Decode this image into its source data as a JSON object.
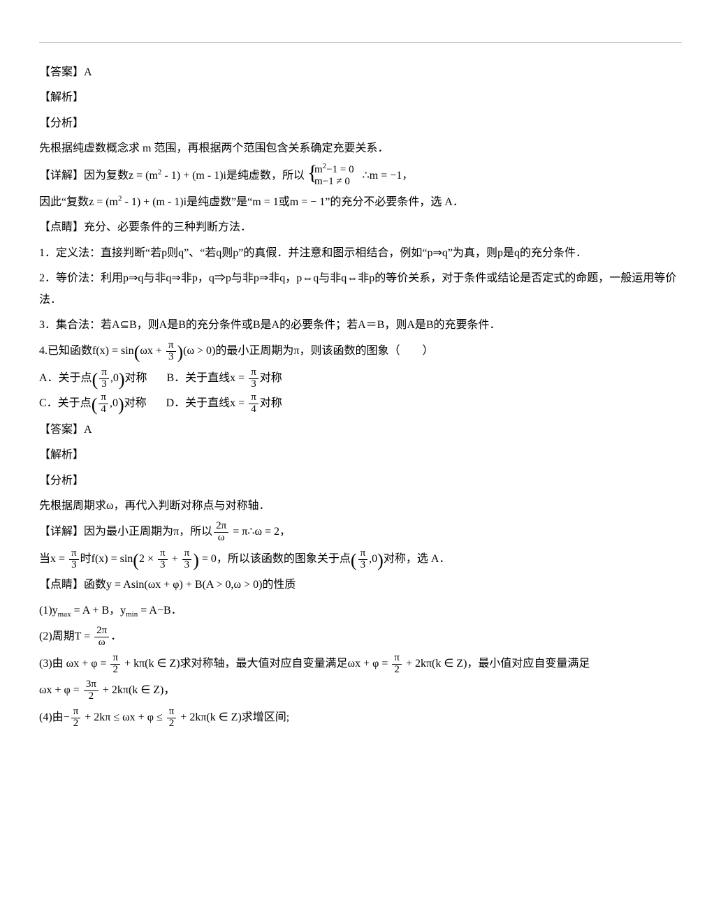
{
  "page": {
    "text_color": "#000000",
    "background_color": "#ffffff",
    "rule_color": "#b0b0b0",
    "base_fontsize": 16,
    "line_height": 1.9
  },
  "ans_label": "【答案】",
  "jiexi_label": "【解析】",
  "fenxi_label": "【分析】",
  "xiangjie_label": "【详解】",
  "dianjing_label": "【点睛】",
  "q3": {
    "answer": "A",
    "fenxi": "先根据纯虚数概念求 m 范围，再根据两个范围包含关系确定充要关系．",
    "detail_prefix": "因为复数z = (m",
    "detail_mid1": " - 1) + (m - 1)i是纯虚数，所以",
    "sys_top_l": "m",
    "sys_top_r": "−1 = 0",
    "sys_bot": "m−1 ≠ 0",
    "detail_after_sys": "∴m = −1，",
    "conclusion_p1": "因此“复数z = (m",
    "conclusion_p2": " - 1) + (m - 1)i是纯虚数”是“m = 1或m = − 1”的充分不必要条件，选 A．",
    "dj_intro": "充分、必要条件的三种判断方法．",
    "dj_1": "1．定义法：直接判断“若p则q”、“若q则p”的真假．并注意和图示相结合，例如“p⇒q”为真，则p是q的充分条件．",
    "dj_2": "2．等价法：利用p⇒q与非q⇒非p，q⇒p与非p⇒非q，p⇔q与非q⇔非p的等价关系，对于条件或结论是否定式的命题，一般运用等价法．",
    "dj_3": "3．集合法：若A⊆B，则A是B的充分条件或B是A的必要条件；若A＝B，则A是B的充要条件．"
  },
  "q4": {
    "stem_p1": "4.已知函数f(x) = sin",
    "stem_arg_l": "ωx + ",
    "stem_arg_frac_num": "π",
    "stem_arg_frac_den": "3",
    "stem_p2": "(ω > 0)的最小正周期为π，则该函数的图象（　　）",
    "optA_l": "A．关于点",
    "optA_frac_num": "π",
    "optA_frac_den": "3",
    "optA_r": ",0",
    "optA_tail": "对称",
    "optB_l": "B．关于直线x = ",
    "optB_frac_num": "π",
    "optB_frac_den": "3",
    "optB_tail": "对称",
    "optC_l": "C．关于点",
    "optC_frac_num": "π",
    "optC_frac_den": "4",
    "optC_r": ",0",
    "optC_tail": "对称",
    "optD_l": "D．关于直线x = ",
    "optD_frac_num": "π",
    "optD_frac_den": "4",
    "optD_tail": "对称",
    "answer": "A",
    "fenxi": "先根据周期求ω，再代入判断对称点与对称轴．",
    "detail_p1": "因为最小正周期为π，所以",
    "detail_frac_num": "2π",
    "detail_frac_den": "ω",
    "detail_p2": " = π∴ω = 2，",
    "detail2_a": "当x = ",
    "detail2_frac1_num": "π",
    "detail2_frac1_den": "3",
    "detail2_b": "时f(x) = sin",
    "detail2_arg_a": "2 × ",
    "detail2_f2_num": "π",
    "detail2_f2_den": "3",
    "detail2_arg_b": " + ",
    "detail2_f3_num": "π",
    "detail2_f3_den": "3",
    "detail2_c": " = 0，所以该函数的图象关于点",
    "detail2_f4_num": "π",
    "detail2_f4_den": "3",
    "detail2_pt": ",0",
    "detail2_d": "对称，选 A．",
    "dj_intro": "函数y = Asin(ωx + φ) + B(A > 0,ω > 0)的性质",
    "dj_1_a": "(1)y",
    "dj_1_max": "max",
    "dj_1_b": " = A + B，y",
    "dj_1_min": "min",
    "dj_1_c": " = A−B．",
    "dj_2_a": "(2)周期T = ",
    "dj_2_num": "2π",
    "dj_2_den": "ω",
    "dj_2_b": "．",
    "dj_3_a": "(3)由 ωx + φ = ",
    "dj_3_f1_num": "π",
    "dj_3_f1_den": "2",
    "dj_3_b": " + kπ(k ∈ Z)求对称轴，最大值对应自变量满足ωx + φ = ",
    "dj_3_f2_num": "π",
    "dj_3_f2_den": "2",
    "dj_3_c": " + 2kπ(k ∈ Z)，最小值对应自变量满足",
    "dj_3_line2_a": "ωx + φ = ",
    "dj_3_f3_num": "3π",
    "dj_3_f3_den": "2",
    "dj_3_line2_b": " + 2kπ(k ∈ Z)，",
    "dj_4_a": "(4)由−",
    "dj_4_f1_num": "π",
    "dj_4_f1_den": "2",
    "dj_4_b": " + 2kπ ≤ ωx + φ ≤ ",
    "dj_4_f2_num": "π",
    "dj_4_f2_den": "2",
    "dj_4_c": " + 2kπ(k ∈ Z)求增区间;"
  }
}
